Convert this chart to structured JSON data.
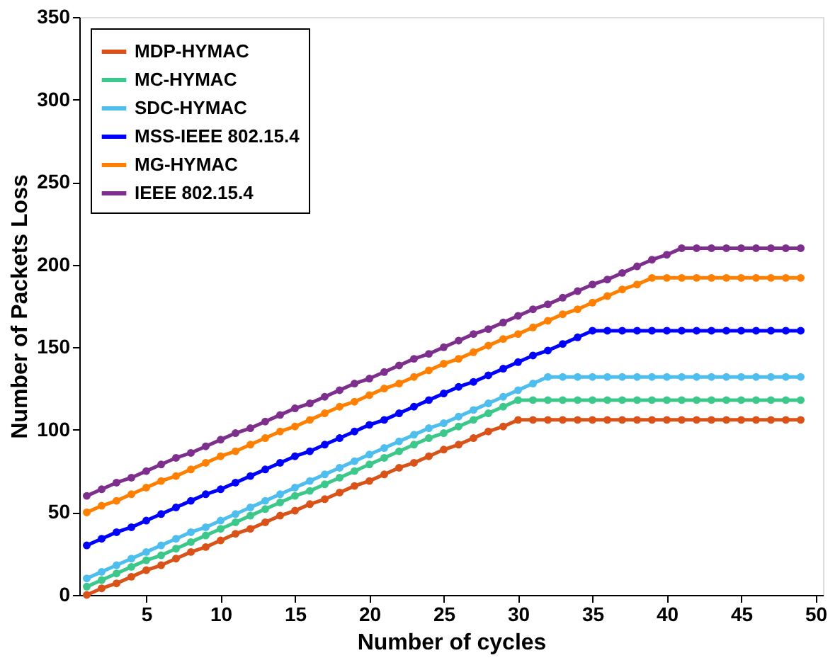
{
  "chart_data": {
    "type": "line",
    "xlabel": "Number of cycles",
    "ylabel": "Number of Packets Loss",
    "x": [
      1,
      2,
      3,
      4,
      5,
      6,
      7,
      8,
      9,
      10,
      11,
      12,
      13,
      14,
      15,
      16,
      17,
      18,
      19,
      20,
      21,
      22,
      23,
      24,
      25,
      26,
      27,
      28,
      29,
      30,
      31,
      32,
      33,
      34,
      35,
      36,
      37,
      38,
      39,
      40,
      41,
      42,
      43,
      44,
      45,
      46,
      47,
      48,
      49
    ],
    "xlim": [
      0.5,
      50.5
    ],
    "xticks": [
      5,
      10,
      15,
      20,
      25,
      30,
      35,
      40,
      45,
      50
    ],
    "ylim": [
      0,
      350
    ],
    "yticks": [
      0,
      50,
      100,
      150,
      200,
      250,
      300,
      350
    ],
    "grid": false,
    "legend": "top left",
    "marker": "circle",
    "line_style": "solid",
    "series": [
      {
        "name": "MDP-HYMAC",
        "color": "#d95319",
        "values": [
          0,
          4,
          7,
          11,
          15,
          18,
          22,
          26,
          29,
          33,
          37,
          40,
          44,
          48,
          51,
          55,
          58,
          62,
          66,
          69,
          73,
          77,
          80,
          84,
          88,
          91,
          95,
          99,
          102,
          106,
          106,
          106,
          106,
          106,
          106,
          106,
          106,
          106,
          106,
          106,
          106,
          106,
          106,
          106,
          106,
          106,
          106,
          106,
          106
        ]
      },
      {
        "name": "MC-HYMAC",
        "color": "#3cc88a",
        "values": [
          5,
          9,
          13,
          17,
          21,
          24,
          28,
          32,
          36,
          40,
          44,
          48,
          52,
          56,
          60,
          63,
          67,
          71,
          75,
          79,
          83,
          87,
          91,
          95,
          98,
          102,
          106,
          110,
          114,
          118,
          118,
          118,
          118,
          118,
          118,
          118,
          118,
          118,
          118,
          118,
          118,
          118,
          118,
          118,
          118,
          118,
          118,
          118,
          118
        ]
      },
      {
        "name": "SDC-HYMAC",
        "color": "#4dbeee",
        "values": [
          10,
          14,
          18,
          22,
          26,
          30,
          34,
          38,
          41,
          45,
          49,
          53,
          57,
          61,
          65,
          69,
          73,
          77,
          81,
          85,
          89,
          93,
          97,
          101,
          104,
          108,
          112,
          116,
          120,
          124,
          128,
          132,
          132,
          132,
          132,
          132,
          132,
          132,
          132,
          132,
          132,
          132,
          132,
          132,
          132,
          132,
          132,
          132,
          132
        ]
      },
      {
        "name": "MSS-IEEE 802.15.4",
        "color": "#0000ff",
        "values": [
          30,
          34,
          38,
          41,
          45,
          49,
          53,
          57,
          61,
          64,
          68,
          72,
          76,
          80,
          84,
          87,
          91,
          95,
          99,
          103,
          106,
          110,
          114,
          118,
          122,
          126,
          129,
          133,
          137,
          141,
          145,
          148,
          152,
          156,
          160,
          160,
          160,
          160,
          160,
          160,
          160,
          160,
          160,
          160,
          160,
          160,
          160,
          160,
          160
        ]
      },
      {
        "name": "MG-HYMAC",
        "color": "#ff8000",
        "values": [
          50,
          54,
          57,
          61,
          65,
          69,
          72,
          76,
          80,
          84,
          87,
          91,
          95,
          99,
          102,
          106,
          110,
          114,
          117,
          121,
          125,
          128,
          132,
          136,
          140,
          143,
          147,
          151,
          155,
          158,
          162,
          166,
          170,
          173,
          177,
          181,
          185,
          188,
          192,
          192,
          192,
          192,
          192,
          192,
          192,
          192,
          192,
          192,
          192
        ]
      },
      {
        "name": "IEEE 802.15.4",
        "color": "#7e2f8e",
        "values": [
          60,
          64,
          68,
          71,
          75,
          79,
          83,
          86,
          90,
          94,
          98,
          101,
          105,
          109,
          113,
          116,
          120,
          124,
          128,
          131,
          135,
          139,
          143,
          146,
          150,
          154,
          158,
          161,
          165,
          169,
          173,
          176,
          180,
          184,
          188,
          191,
          195,
          199,
          203,
          206,
          210,
          210,
          210,
          210,
          210,
          210,
          210,
          210,
          210
        ]
      }
    ]
  }
}
